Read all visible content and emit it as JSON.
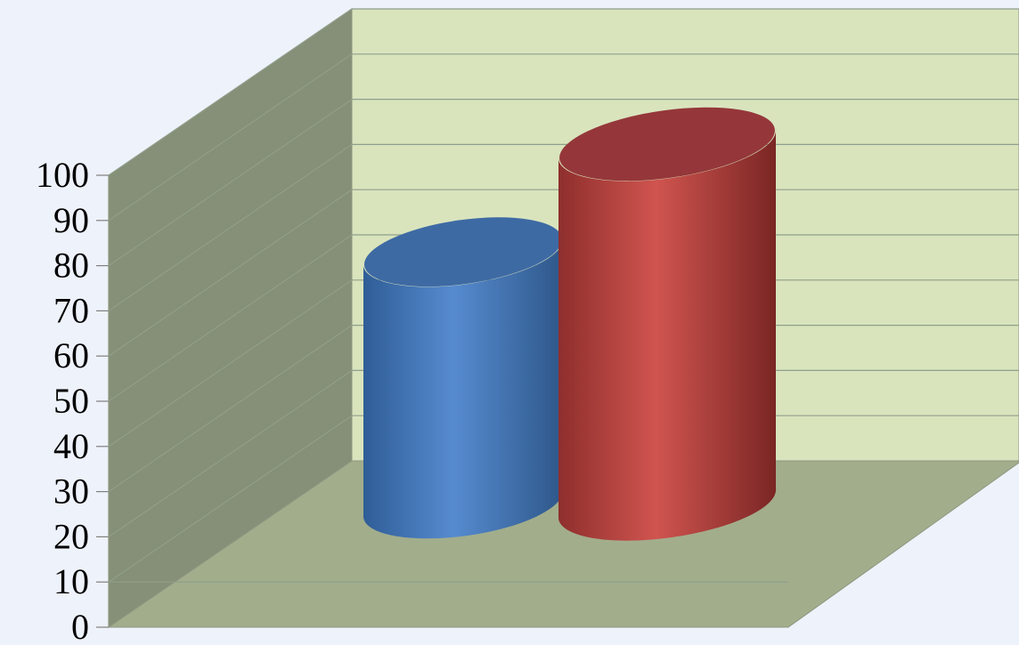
{
  "chart_data": {
    "type": "bar",
    "style": "3d-cylinder",
    "title": "",
    "xlabel": "",
    "ylabel": "",
    "ylim": [
      0,
      100
    ],
    "y_ticks": [
      "0",
      "10",
      "20",
      "30",
      "40",
      "50",
      "60",
      "70",
      "80",
      "90",
      "100"
    ],
    "grid": true,
    "legend": "none",
    "series": [
      {
        "values": [
          70
        ],
        "color": "#4a7fc1"
      },
      {
        "values": [
          100
        ],
        "color": "#c0504d"
      }
    ]
  },
  "colors": {
    "background": "#eef2fa",
    "back_wall": "#d9e4bd",
    "side_wall": "#868f77",
    "floor": "#a2ad8c",
    "gridline": "#8f9f8c"
  }
}
